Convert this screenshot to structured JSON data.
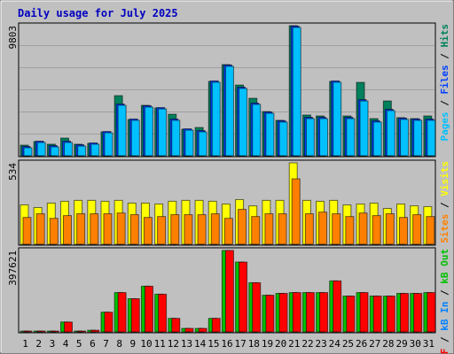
{
  "chart_data": [
    {
      "type": "bar",
      "title": "Daily usage for July 2025",
      "ylim": [
        0,
        9803
      ],
      "yticks": [
        9803
      ],
      "legend_separator": " / ",
      "series": [
        {
          "name": "Pages",
          "color": "#00c0ff",
          "values": [
            600,
            1000,
            670,
            1000,
            730,
            870,
            1730,
            3800,
            2670,
            3670,
            3530,
            2670,
            1930,
            1800,
            5540,
            6740,
            5070,
            3870,
            3200,
            2540,
            9670,
            2800,
            2800,
            5540,
            2800,
            4130,
            2540,
            3400,
            2740,
            2670,
            2670
          ]
        },
        {
          "name": "Files",
          "color": "#0040ff",
          "values": [
            700,
            1100,
            770,
            1100,
            830,
            970,
            1830,
            3900,
            2770,
            3770,
            3630,
            2770,
            2030,
            1900,
            5640,
            6840,
            5170,
            3970,
            3300,
            2640,
            9770,
            2900,
            2900,
            5640,
            2900,
            4230,
            2640,
            3500,
            2840,
            2770,
            2770
          ]
        },
        {
          "name": "Hits",
          "color": "#00805c",
          "values": [
            800,
            1070,
            870,
            1330,
            870,
            930,
            1800,
            4530,
            2730,
            3800,
            3600,
            3130,
            2000,
            2130,
            5600,
            6870,
            5330,
            4330,
            3330,
            2670,
            9803,
            3070,
            3000,
            5600,
            3000,
            5530,
            2800,
            4130,
            2870,
            2800,
            3000
          ]
        }
      ]
    },
    {
      "type": "bar",
      "ylim": [
        0,
        534
      ],
      "yticks": [
        534
      ],
      "legend_separator": " / ",
      "series": [
        {
          "name": "Sites",
          "color": "#ff8000",
          "values": [
            176,
            200,
            170,
            188,
            200,
            200,
            200,
            205,
            194,
            176,
            182,
            194,
            194,
            194,
            200,
            170,
            229,
            182,
            200,
            200,
            429,
            200,
            211,
            200,
            182,
            205,
            188,
            200,
            176,
            194,
            182
          ]
        },
        {
          "name": "Visits",
          "color": "#ffff00",
          "values": [
            258,
            241,
            270,
            282,
            288,
            288,
            282,
            288,
            270,
            270,
            264,
            282,
            288,
            288,
            282,
            264,
            293,
            252,
            288,
            288,
            534,
            288,
            282,
            288,
            258,
            264,
            270,
            235,
            264,
            252,
            247
          ]
        }
      ]
    },
    {
      "type": "bar",
      "ylim": [
        0,
        397621
      ],
      "yticks": [
        397621
      ],
      "legend_separator": " / ",
      "categories": [
        "1",
        "2",
        "3",
        "4",
        "5",
        "6",
        "7",
        "8",
        "9",
        "10",
        "11",
        "12",
        "13",
        "14",
        "15",
        "16",
        "17",
        "18",
        "19",
        "20",
        "21",
        "22",
        "23",
        "24",
        "25",
        "26",
        "27",
        "28",
        "29",
        "30",
        "31"
      ],
      "category_colors": [
        "#000000",
        "#000000",
        "#000000",
        "#000000",
        "#00805c",
        "#00805c",
        "#000000",
        "#000000",
        "#000000",
        "#000000",
        "#000000",
        "#00805c",
        "#00805c",
        "#000000",
        "#000000",
        "#000000",
        "#000000",
        "#000000",
        "#00805c",
        "#00805c",
        "#000000",
        "#000000",
        "#000000",
        "#000000",
        "#000000",
        "#00805c",
        "#00805c",
        "#000000",
        "#000000",
        "#000000",
        "#000000"
      ],
      "series": [
        {
          "name": "kB F",
          "color": "#ff0000",
          "values": [
            4000,
            4000,
            4000,
            48000,
            4000,
            8000,
            96000,
            192000,
            162000,
            223000,
            184000,
            66000,
            17000,
            17000,
            66000,
            397621,
            341000,
            240000,
            179000,
            188000,
            192000,
            192000,
            192000,
            249000,
            175000,
            192000,
            175000,
            175000,
            188000,
            188000,
            192000
          ]
        },
        {
          "name": "kB In",
          "color": "#0080ff",
          "values": [
            0,
            0,
            0,
            0,
            0,
            0,
            0,
            0,
            0,
            0,
            0,
            0,
            0,
            0,
            0,
            0,
            0,
            0,
            0,
            0,
            0,
            0,
            0,
            0,
            0,
            0,
            0,
            0,
            0,
            0,
            0
          ]
        },
        {
          "name": "kB Out",
          "color": "#00c000",
          "values": [
            4000,
            4000,
            4000,
            48000,
            4000,
            8000,
            96000,
            192000,
            162000,
            223000,
            184000,
            66000,
            17000,
            17000,
            66000,
            397621,
            341000,
            240000,
            179000,
            188000,
            192000,
            192000,
            192000,
            249000,
            175000,
            192000,
            175000,
            175000,
            188000,
            188000,
            192000
          ]
        }
      ]
    }
  ]
}
